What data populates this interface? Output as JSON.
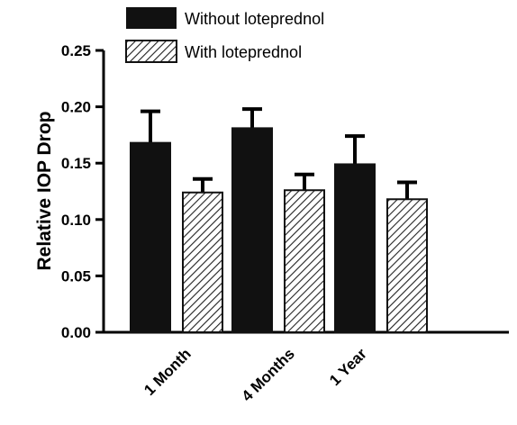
{
  "chart_data": {
    "type": "bar",
    "categories": [
      "1 Month",
      "4 Months",
      "1 Year"
    ],
    "series": [
      {
        "name": "Without loteprednol",
        "values": [
          0.168,
          0.181,
          0.149
        ],
        "errors": [
          0.028,
          0.017,
          0.025
        ],
        "color": "#111111",
        "pattern": "solid"
      },
      {
        "name": "With loteprednol",
        "values": [
          0.124,
          0.126,
          0.118
        ],
        "errors": [
          0.012,
          0.014,
          0.015
        ],
        "color": "#ffffff",
        "pattern": "diagonal-hatch"
      }
    ],
    "title": "",
    "xlabel": "",
    "ylabel": "Relative IOP Drop",
    "ylim": [
      0.0,
      0.25
    ],
    "yticks": [
      "0.00",
      "0.05",
      "0.10",
      "0.15",
      "0.20",
      "0.25"
    ],
    "grid": false,
    "legend_position": "top-left"
  }
}
